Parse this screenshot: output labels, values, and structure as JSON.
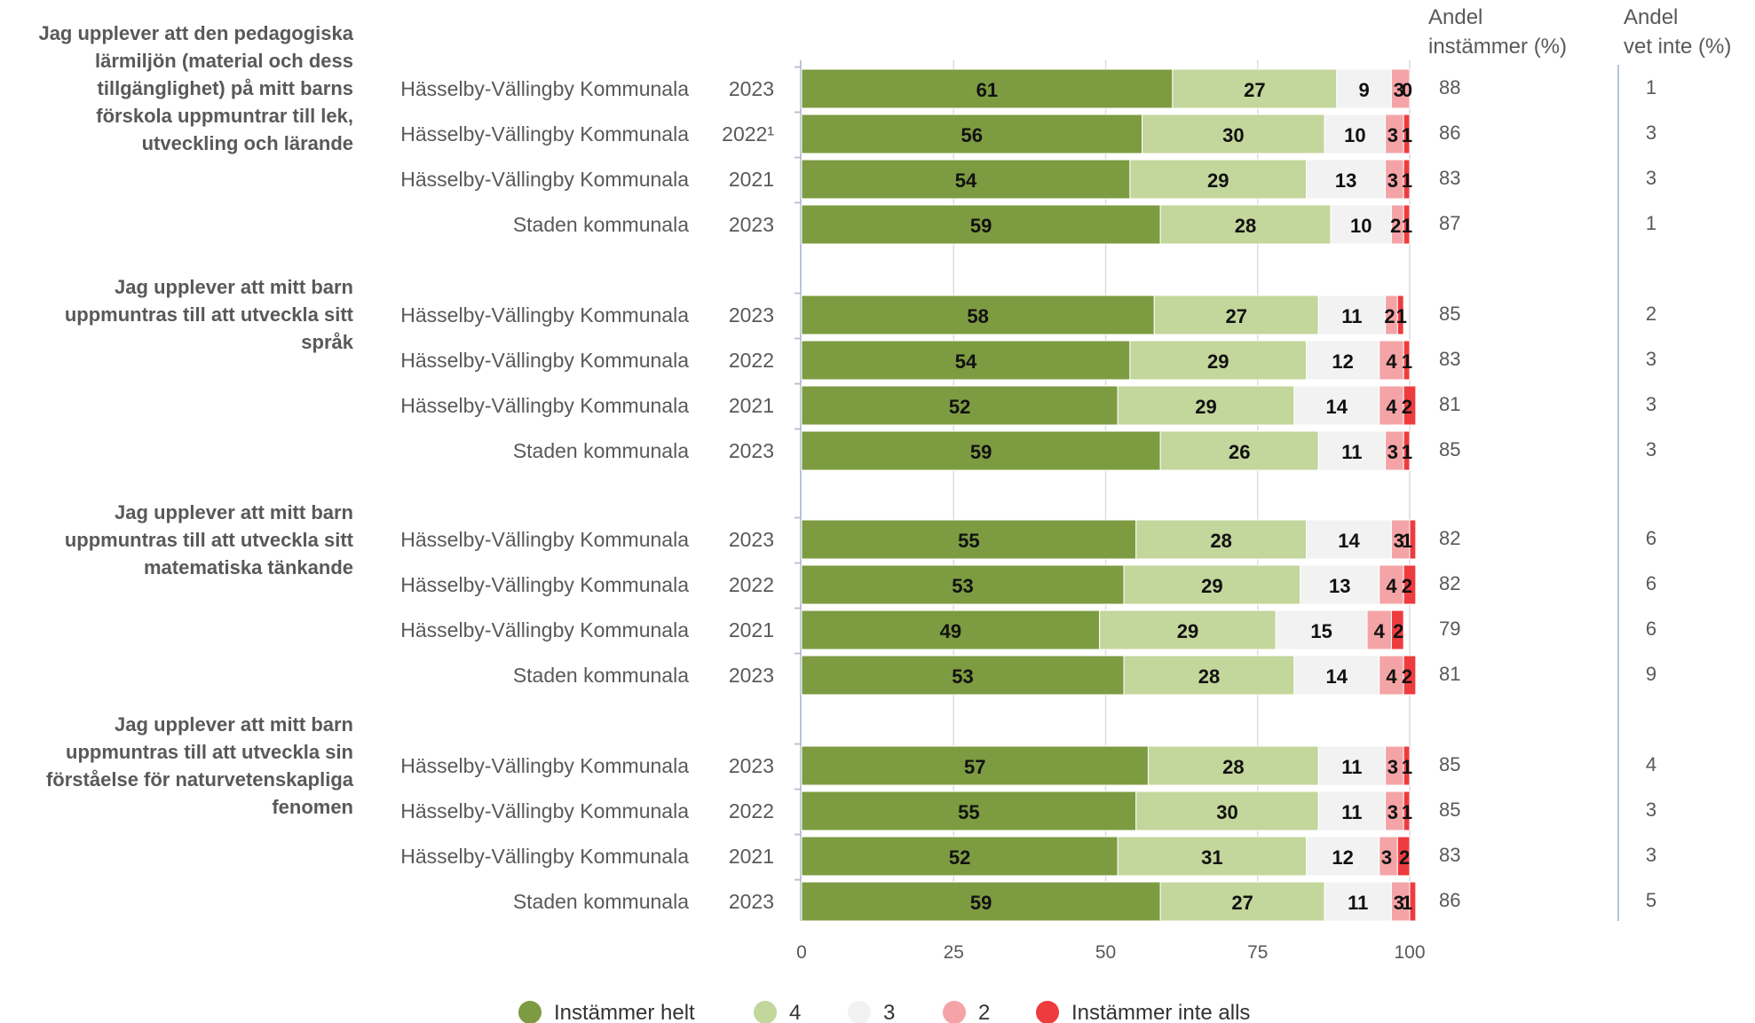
{
  "columns": {
    "agree_header": [
      "Andel",
      "instämmer (%)"
    ],
    "dontknow_header": [
      "Andel",
      "vet inte (%)"
    ]
  },
  "legend": [
    "Instämmer helt",
    "4",
    "3",
    "2",
    "Instämmer inte alls"
  ],
  "colors": [
    "#7d9b41",
    "#c3d69b",
    "#f2f2f2",
    "#f4a4a6",
    "#ee3b3e"
  ],
  "chart_data": {
    "type": "bar",
    "orientation": "horizontal",
    "stacked": true,
    "xlim": [
      0,
      100
    ],
    "xticks": [
      0,
      25,
      50,
      75,
      100
    ],
    "grid": true,
    "legend_position": "bottom",
    "series_names": [
      "Instämmer helt",
      "4",
      "3",
      "2",
      "Instämmer inte alls"
    ],
    "groups": [
      {
        "title": [
          "Jag upplever att den pedagogiska",
          "lärmiljön (material och dess",
          "tillgänglighet) på mitt barns",
          "förskola uppmuntrar till lek,",
          "utveckling och lärande"
        ],
        "rows": [
          {
            "label": "Hässelby-Vällingby Kommunala",
            "year": "2023",
            "values": [
              61,
              27,
              9,
              3,
              0
            ],
            "agree": "88",
            "dontknow": "1"
          },
          {
            "label": "Hässelby-Vällingby Kommunala",
            "year": "2022¹",
            "values": [
              56,
              30,
              10,
              3,
              1
            ],
            "agree": "86",
            "dontknow": "3"
          },
          {
            "label": "Hässelby-Vällingby Kommunala",
            "year": "2021",
            "values": [
              54,
              29,
              13,
              3,
              1
            ],
            "agree": "83",
            "dontknow": "3"
          },
          {
            "label": "Staden kommunala",
            "year": "2023",
            "values": [
              59,
              28,
              10,
              2,
              1
            ],
            "agree": "87",
            "dontknow": "1"
          }
        ]
      },
      {
        "title": [
          "Jag upplever att mitt barn",
          "uppmuntras till att utveckla sitt",
          "språk"
        ],
        "rows": [
          {
            "label": "Hässelby-Vällingby Kommunala",
            "year": "2023",
            "values": [
              58,
              27,
              11,
              2,
              1
            ],
            "agree": "85",
            "dontknow": "2"
          },
          {
            "label": "Hässelby-Vällingby Kommunala",
            "year": "2022",
            "values": [
              54,
              29,
              12,
              4,
              1
            ],
            "agree": "83",
            "dontknow": "3"
          },
          {
            "label": "Hässelby-Vällingby Kommunala",
            "year": "2021",
            "values": [
              52,
              29,
              14,
              4,
              2
            ],
            "agree": "81",
            "dontknow": "3"
          },
          {
            "label": "Staden kommunala",
            "year": "2023",
            "values": [
              59,
              26,
              11,
              3,
              1
            ],
            "agree": "85",
            "dontknow": "3"
          }
        ]
      },
      {
        "title": [
          "Jag upplever att mitt barn",
          "uppmuntras till att utveckla sitt",
          "matematiska tänkande"
        ],
        "rows": [
          {
            "label": "Hässelby-Vällingby Kommunala",
            "year": "2023",
            "values": [
              55,
              28,
              14,
              3,
              1
            ],
            "agree": "82",
            "dontknow": "6"
          },
          {
            "label": "Hässelby-Vällingby Kommunala",
            "year": "2022",
            "values": [
              53,
              29,
              13,
              4,
              2
            ],
            "agree": "82",
            "dontknow": "6"
          },
          {
            "label": "Hässelby-Vällingby Kommunala",
            "year": "2021",
            "values": [
              49,
              29,
              15,
              4,
              2
            ],
            "agree": "79",
            "dontknow": "6"
          },
          {
            "label": "Staden kommunala",
            "year": "2023",
            "values": [
              53,
              28,
              14,
              4,
              2
            ],
            "agree": "81",
            "dontknow": "9"
          }
        ]
      },
      {
        "title": [
          "Jag upplever att mitt barn",
          "uppmuntras till att utveckla sin",
          "förståelse för naturvetenskapliga",
          "fenomen"
        ],
        "rows": [
          {
            "label": "Hässelby-Vällingby Kommunala",
            "year": "2023",
            "values": [
              57,
              28,
              11,
              3,
              1
            ],
            "agree": "85",
            "dontknow": "4"
          },
          {
            "label": "Hässelby-Vällingby Kommunala",
            "year": "2022",
            "values": [
              55,
              30,
              11,
              3,
              1
            ],
            "agree": "85",
            "dontknow": "3"
          },
          {
            "label": "Hässelby-Vällingby Kommunala",
            "year": "2021",
            "values": [
              52,
              31,
              12,
              3,
              2
            ],
            "agree": "83",
            "dontknow": "3"
          },
          {
            "label": "Staden kommunala",
            "year": "2023",
            "values": [
              59,
              27,
              11,
              3,
              1
            ],
            "agree": "86",
            "dontknow": "5"
          }
        ]
      }
    ]
  }
}
